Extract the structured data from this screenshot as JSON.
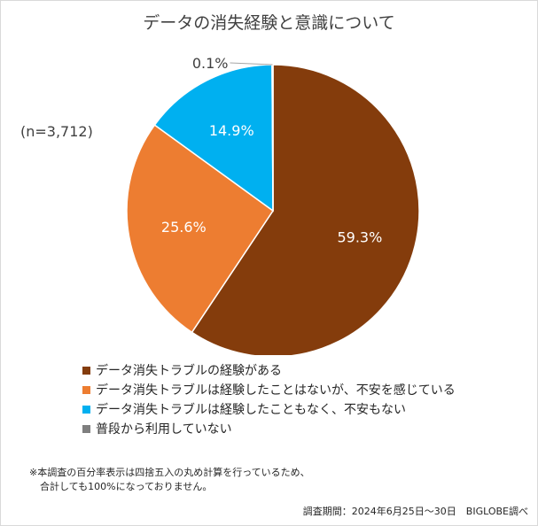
{
  "chart_data": {
    "type": "pie",
    "title": "データの消失経験と意識について",
    "sample_size": "(n=3,712)",
    "slices": [
      {
        "label": "データ消失トラブルの経験がある",
        "value": 59.3,
        "display": "59.3%",
        "color": "#843c0c"
      },
      {
        "label": "データ消失トラブルは経験したことはないが、不安を感じている",
        "value": 25.6,
        "display": "25.6%",
        "color": "#ed7d31"
      },
      {
        "label": "データ消失トラブルは経験したこともなく、不安もない",
        "value": 14.9,
        "display": "14.9%",
        "color": "#00b0f0"
      },
      {
        "label": "普段から利用していない",
        "value": 0.1,
        "display": "0.1%",
        "color": "#7f7f7f"
      }
    ],
    "legend_position": "bottom"
  },
  "footnote": {
    "line1": "※本調査の百分率表示は四捨五入の丸め計算を行っているため、",
    "line2": "合計しても100%になっておりません。"
  },
  "credit": "調査期間：2024年6月25日〜30日　BIGLOBE調べ"
}
